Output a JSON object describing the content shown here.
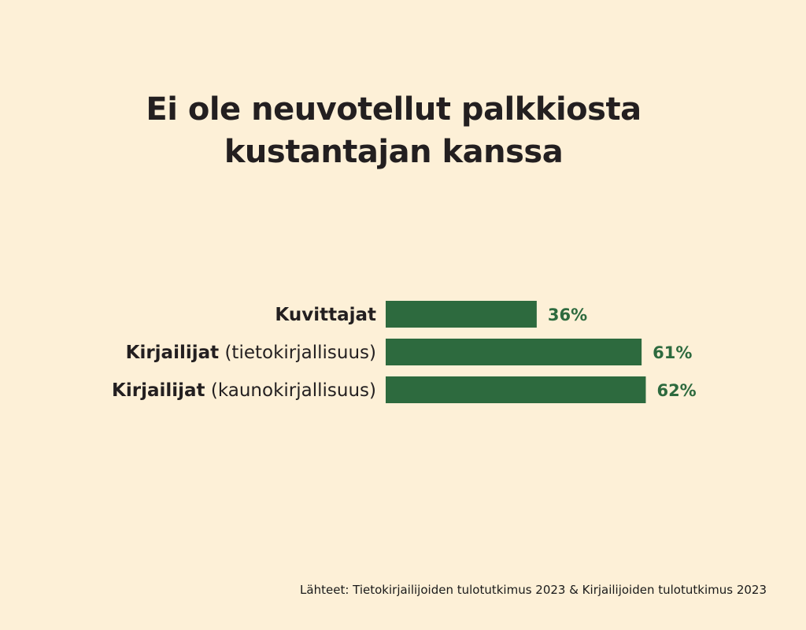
{
  "title_lines": [
    "Ei ole neuvotellut palkkiosta",
    "kustantajan kanssa"
  ],
  "source": "Lähteet: Tietokirjailijoiden tulotutkimus 2023 & Kirjailijoiden tulotutkimus 2023",
  "colors": {
    "background": "#fdf0d7",
    "bar": "#2d6a3e",
    "value_text": "#2d6a3e",
    "text": "#231f20"
  },
  "chart_data": {
    "type": "bar",
    "orientation": "horizontal",
    "title": "Ei ole neuvotellut palkkiosta kustantajan kanssa",
    "categories": [
      {
        "bold": "Kuvittajat",
        "light": ""
      },
      {
        "bold": "Kirjailijat",
        "light": "(tietokirjallisuus)"
      },
      {
        "bold": "Kirjailijat",
        "light": "(kaunokirjallisuus)"
      }
    ],
    "values": [
      36,
      61,
      62
    ],
    "value_labels": [
      "36%",
      "61%",
      "62%"
    ],
    "unit": "%",
    "xlim": [
      0,
      100
    ],
    "grid": false,
    "legend": "none"
  }
}
